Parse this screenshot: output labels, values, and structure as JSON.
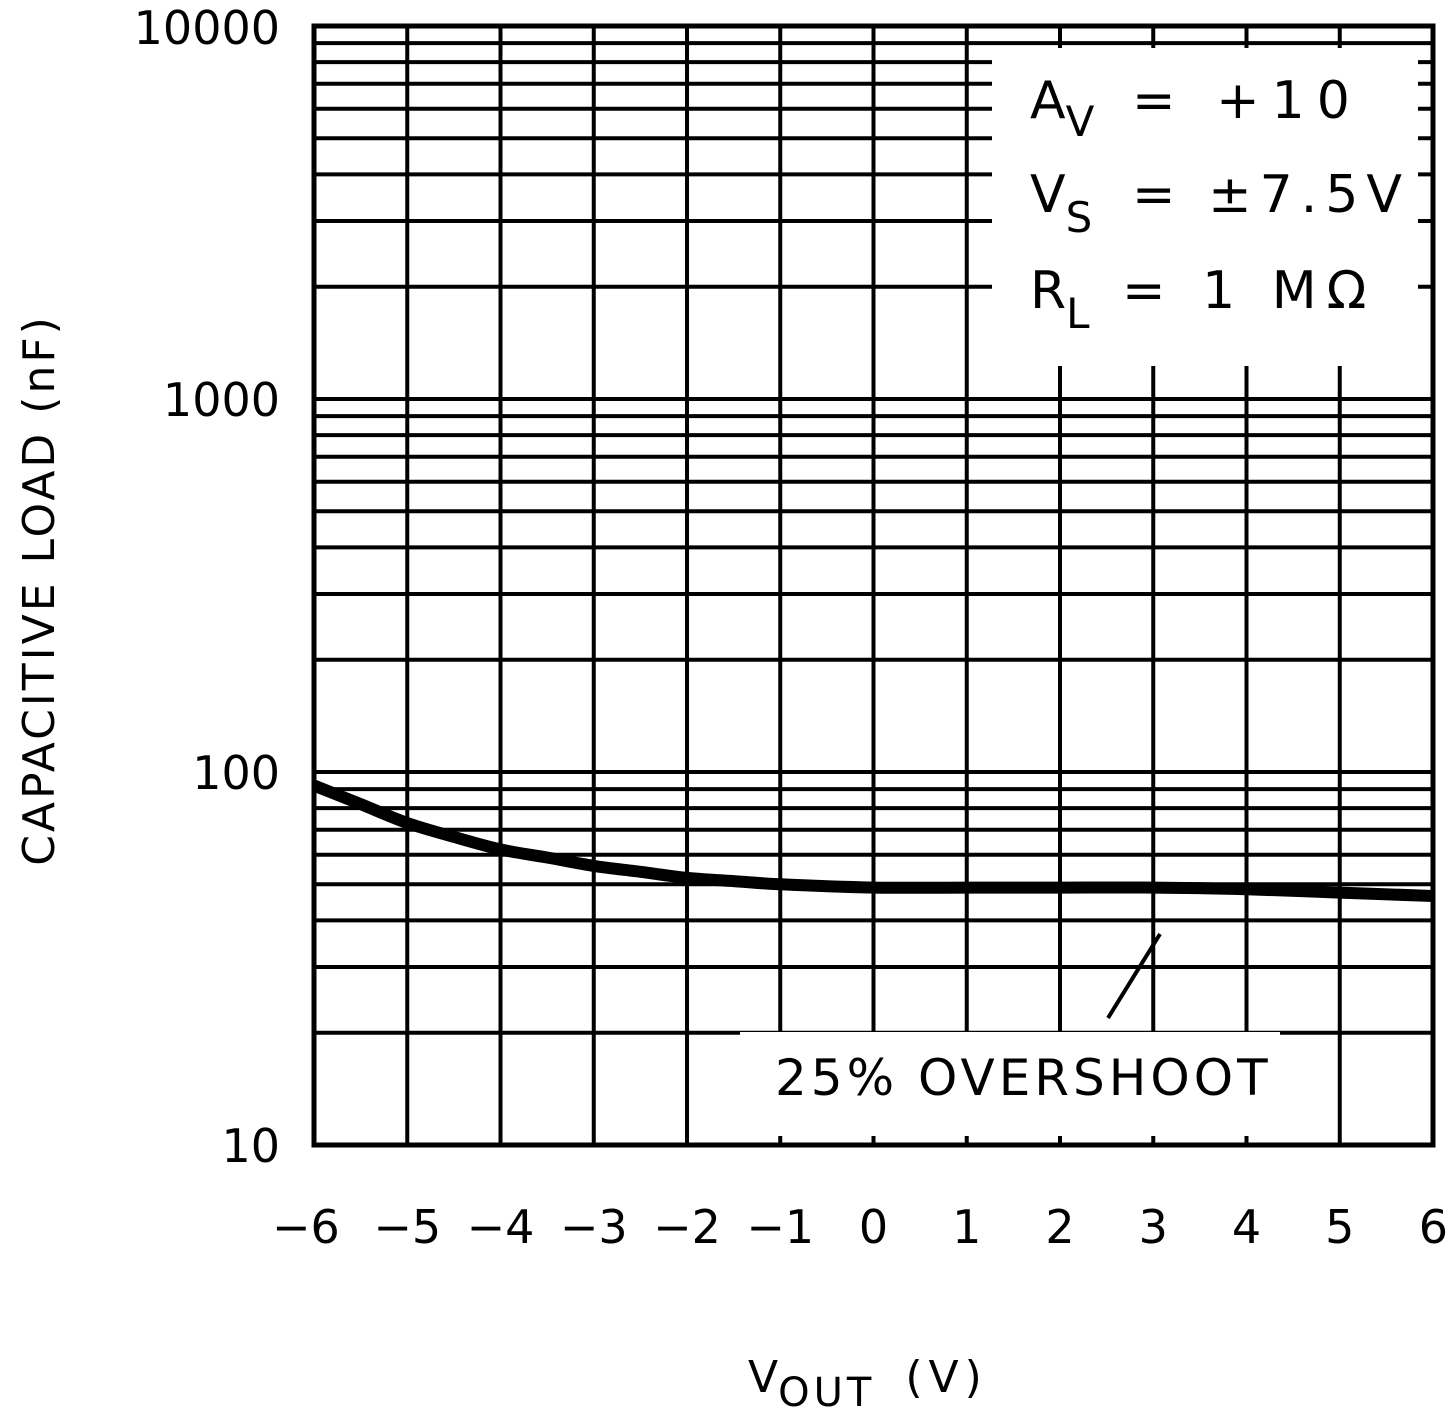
{
  "chart_data": {
    "type": "line",
    "title": "",
    "xlabel": {
      "main": "V",
      "sub": "OUT",
      "unit": "(V)"
    },
    "ylabel": "CAPACITIVE LOAD (nF)",
    "xlim": [
      -6,
      6
    ],
    "ylim": [
      10,
      10000
    ],
    "yscale": "log",
    "grid": true,
    "x_ticks": [
      -6,
      -5,
      -4,
      -3,
      -2,
      -1,
      0,
      1,
      2,
      3,
      4,
      5,
      6
    ],
    "x_tick_labels": [
      "−6",
      "−5",
      "−4",
      "−3",
      "−2",
      "−1",
      "0",
      "1",
      "2",
      "3",
      "4",
      "5",
      "6"
    ],
    "y_ticks": [
      10,
      100,
      1000,
      10000
    ],
    "y_tick_labels": [
      "10",
      "100",
      "1000",
      "10000"
    ],
    "series": [
      {
        "name": "25% OVERSHOOT",
        "x": [
          -6,
          -5.5,
          -5,
          -4.5,
          -4,
          -3.5,
          -3,
          -2.5,
          -2,
          -1.5,
          -1,
          0,
          1,
          2,
          3,
          4,
          5,
          6
        ],
        "y": [
          92,
          82,
          73,
          67,
          62,
          59,
          56,
          54,
          52,
          51,
          50,
          49,
          49,
          49,
          49,
          48.5,
          47.5,
          46.5
        ]
      }
    ],
    "legend": {
      "position": "top-right",
      "entries": [
        {
          "main": "A",
          "sub": "V",
          "rest": "= +10"
        },
        {
          "main": "V",
          "sub": "S",
          "rest": "= ±7.5V"
        },
        {
          "main": "R",
          "sub": "L",
          "rest": "= 1 MΩ"
        }
      ]
    },
    "annotation": {
      "text": "25% OVERSHOOT",
      "points_to_x": 3
    }
  }
}
